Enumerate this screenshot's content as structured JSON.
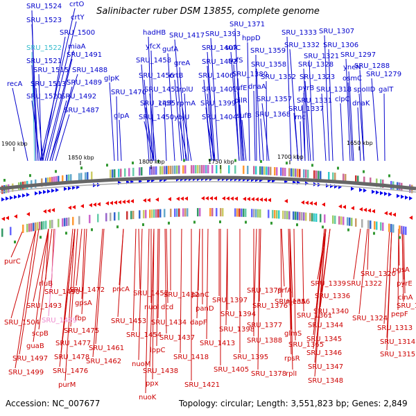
{
  "title": "Salinibacter ruber DSM 13855, complete genome",
  "accession": "Accession: NC_007677",
  "topology": "Topology: circular; Length: 3,551,823 bp; Genes: 2,849",
  "scale_labels": [
    "1900 kbp",
    "1850 kbp",
    "1800 kbp",
    "1750 kbp",
    "1700 kbp",
    "1650 kbp"
  ],
  "colors": {
    "top_line": "#0000cc",
    "bottom_line": "#cc0000",
    "highlight_top": "#33bbcc",
    "highlight_bottom": "#ee88cc",
    "ring": "#666666"
  },
  "top_labels": [
    "SRU_1524",
    "crtO",
    "SRU_1523",
    "crtY",
    "SRU_1500",
    "SRU_1522",
    "miaA",
    "SRU_1491",
    "SRU_1521",
    "SRU_1515",
    "SRU_1488",
    "recA",
    "SRU_1513",
    "SRU_1489",
    "SRU_1520",
    "SRU_1492",
    "SRU_1487",
    "hadHB",
    "yfcX",
    "SRU_1458",
    "SRU_1456",
    "glpK",
    "SRU_1470",
    "SRU_1451",
    "SRU_1455",
    "glpA",
    "SRU_1450",
    "SRU_1417",
    "gufA",
    "greA",
    "crtB",
    "rplU",
    "rpmA",
    "clpP",
    "ybjU",
    "SRU_1393",
    "SRU_1407",
    "SRU_1402",
    "SRU_1406",
    "SRU_1401",
    "SRU_1399",
    "SRU_1404",
    "SRU_1371",
    "hppD",
    "sufC",
    "SRU_1359",
    "sufS",
    "SRU_1380",
    "SRU_1358",
    "sufE",
    "dnaA",
    "pilR",
    "SRU_1352",
    "sufB",
    "SRU_1368",
    "SRU_1357",
    "SRU_1333",
    "SRU_1307",
    "SRU_1332",
    "SRU_1306",
    "SRU_1321",
    "SRU_1297",
    "SRU_1328",
    "yneN",
    "SRU_1288",
    "osmC",
    "SRU_1323",
    "pyrB",
    "SRU_1318",
    "spoIID",
    "SRU_1279",
    "SRU_1331",
    "clpC",
    "galT",
    "SRU_1337",
    "dnaK",
    "rnc"
  ],
  "bottom_labels": [
    "purC",
    "rluB",
    "SRU_1490",
    "SRU_1493",
    "SRU_1472",
    "gpsA",
    "SRU_1504",
    "SRU_1489",
    "fbp",
    "scpB",
    "SRU_1475",
    "guaB",
    "SRU_1477",
    "SRU_1497",
    "SRU_1478",
    "SRU_1499",
    "SRU_1476",
    "purM",
    "SRU_1461",
    "SRU_1462",
    "pncA",
    "SRU_1452",
    "SRU_1453",
    "SRU_1454",
    "nuoI",
    "SRU_1432",
    "dcd",
    "SRU_1434",
    "SRU_1437",
    "lppC",
    "nuoM",
    "SRU_1438",
    "ppx",
    "nuoK",
    "SRU_1418",
    "SRU_1421",
    "panC",
    "panD",
    "dapF",
    "SRU_1413",
    "SRU_1405",
    "SRU_1397",
    "SRU_1394",
    "SRU_1398",
    "SRU_1395",
    "SRU_1388",
    "SRU_1379",
    "SRU_1376",
    "SRU_1377",
    "SRU_1378",
    "prfA",
    "menA",
    "SRU_1356",
    "SRU_1361",
    "glmS",
    "SRU_1365",
    "rpsR",
    "rplI",
    "SRU_1339",
    "SRU_1336",
    "SRU_1340",
    "SRU_1344",
    "SRU_1345",
    "SRU_1346",
    "SRU_1347",
    "SRU_1348",
    "SRU_1320",
    "SRU_1322",
    "pgsA",
    "pyrE",
    "cinA",
    "SRU_1309",
    "SRU_1324",
    "pepF",
    "SRU_1313",
    "SRU_1314",
    "SRU_1315"
  ]
}
